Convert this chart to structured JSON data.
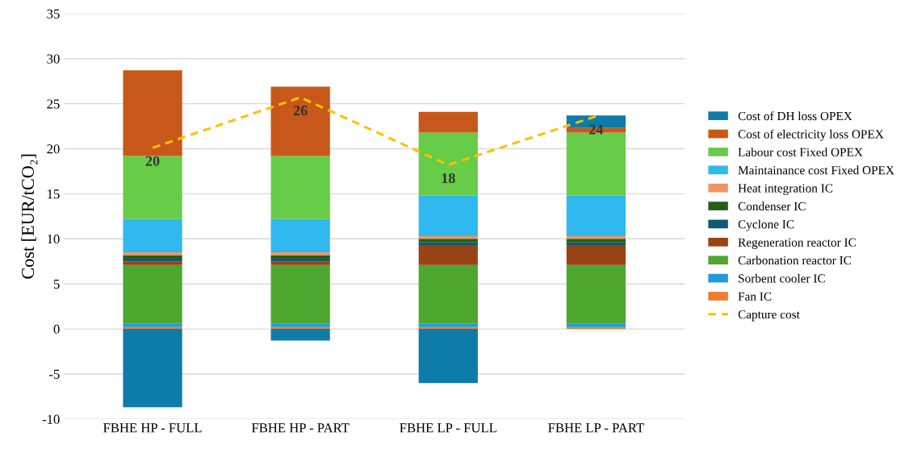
{
  "chart_data": {
    "type": "bar",
    "stacked": true,
    "ylabel": "Cost [EUR/tCO₂]",
    "categories": [
      "FBHE HP - FULL",
      "FBHE HP - PART",
      "FBHE LP - FULL",
      "FBHE LP - PART"
    ],
    "ylim": [
      -10,
      35
    ],
    "yticks": [
      -10,
      -5,
      0,
      5,
      10,
      15,
      20,
      25,
      30,
      35
    ],
    "grid": "y",
    "legend": "right",
    "series": [
      {
        "name": "Fan IC",
        "color": "#ed7d31",
        "values": [
          0.2,
          0.2,
          0.2,
          0.2
        ]
      },
      {
        "name": "Sorbent cooler IC",
        "color": "#1f9bd7",
        "values": [
          0.4,
          0.4,
          0.4,
          0.4
        ]
      },
      {
        "name": "Carbonation reactor IC",
        "color": "#4ea72e",
        "values": [
          6.5,
          6.5,
          6.5,
          6.5
        ]
      },
      {
        "name": "Regeneration reactor IC",
        "color": "#984315",
        "values": [
          0.4,
          0.4,
          2.2,
          2.2
        ]
      },
      {
        "name": "Cyclone IC",
        "color": "#0e5a73",
        "values": [
          0.3,
          0.3,
          0.3,
          0.3
        ]
      },
      {
        "name": "Condenser IC",
        "color": "#255e1b",
        "values": [
          0.4,
          0.4,
          0.4,
          0.4
        ]
      },
      {
        "name": "Heat integration IC",
        "color": "#f0955f",
        "values": [
          0.3,
          0.3,
          0.3,
          0.3
        ]
      },
      {
        "name": "Maintainance cost Fixed OPEX",
        "color": "#2fb9ef",
        "values": [
          3.7,
          3.7,
          4.5,
          4.5
        ]
      },
      {
        "name": "Labour cost Fixed OPEX",
        "color": "#67cc47",
        "values": [
          7.0,
          7.0,
          7.0,
          7.0
        ]
      },
      {
        "name": "Cost of electricity loss OPEX",
        "color": "#c85819",
        "values": [
          9.5,
          7.7,
          2.3,
          0.5
        ]
      },
      {
        "name": "Cost of DH loss OPEX",
        "color": "#0d7ca8",
        "values": [
          -8.7,
          -1.3,
          -6.0,
          1.4
        ]
      },
      {
        "name": "Capture cost",
        "type": "line",
        "color": "#ffc000",
        "line_style": "dashed",
        "values": [
          20.1,
          25.7,
          18.2,
          23.6
        ],
        "value_labels": [
          "20",
          "26",
          "18",
          "24"
        ]
      }
    ]
  }
}
